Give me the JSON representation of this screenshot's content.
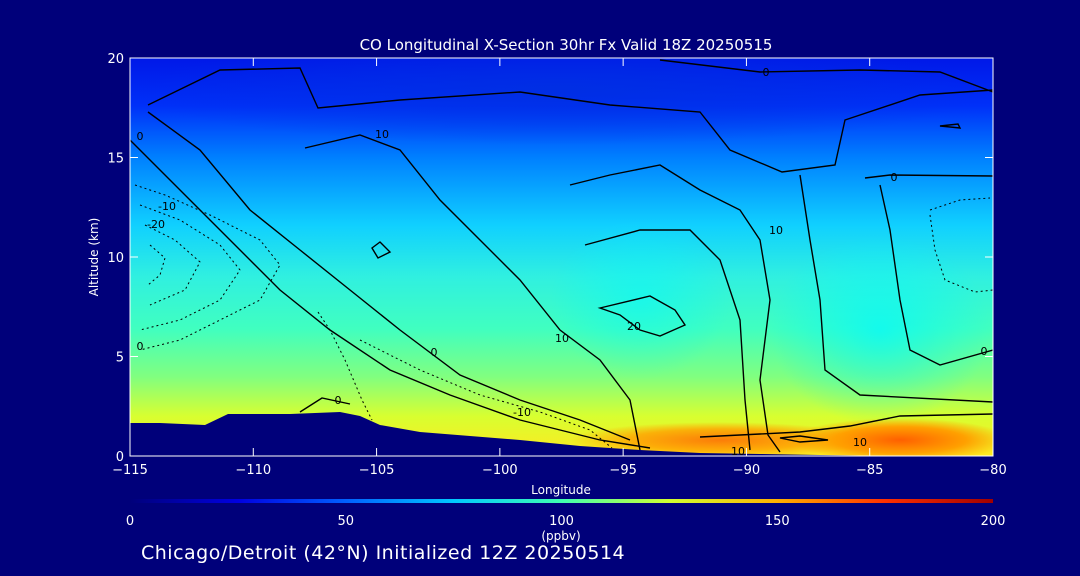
{
  "chart_data": {
    "type": "heatmap",
    "title": "CO Longitudinal X-Section 30hr  Fx Valid 18Z 20250515",
    "xlabel": "Longitude",
    "ylabel": "Altitude (km)",
    "xlim": [
      -115,
      -80
    ],
    "ylim": [
      0,
      20
    ],
    "x_ticks": [
      -115,
      -110,
      -105,
      -100,
      -95,
      -90,
      -85,
      -80
    ],
    "x_tick_labels": [
      "−115",
      "−110",
      "−105",
      "−100",
      "−95",
      "−90",
      "−85",
      "−80"
    ],
    "y_ticks": [
      0,
      5,
      10,
      15,
      20
    ],
    "y_tick_labels": [
      "0",
      "5",
      "10",
      "15",
      "20"
    ],
    "colorbar": {
      "min": 0,
      "max": 200,
      "ticks": [
        0,
        50,
        100,
        150,
        200
      ],
      "tick_labels": [
        "0",
        "50",
        "100",
        "150",
        "200"
      ],
      "unit_label": "(ppbv)",
      "colors": [
        "#00007a",
        "#0000e0",
        "#0060ff",
        "#00c8ff",
        "#40ffb0",
        "#d0ff30",
        "#ffb000",
        "#ff3000",
        "#a00000"
      ]
    },
    "co_field_ppbv": {
      "longitude": [
        -115,
        -110,
        -105,
        -100,
        -95,
        -90,
        -85,
        -80
      ],
      "altitude_km": [
        0,
        2.5,
        5,
        7.5,
        10,
        12.5,
        15,
        17.5,
        20
      ],
      "values": [
        [
          85,
          110,
          125,
          130,
          140,
          150,
          155,
          150
        ],
        [
          95,
          115,
          125,
          118,
          108,
          112,
          115,
          120
        ],
        [
          98,
          100,
          100,
          100,
          100,
          98,
          98,
          100
        ],
        [
          90,
          92,
          92,
          94,
          95,
          92,
          92,
          95
        ],
        [
          80,
          82,
          82,
          85,
          88,
          85,
          85,
          88
        ],
        [
          62,
          62,
          66,
          70,
          74,
          70,
          70,
          72
        ],
        [
          42,
          48,
          52,
          55,
          60,
          55,
          55,
          55
        ],
        [
          30,
          35,
          38,
          40,
          42,
          40,
          40,
          42
        ],
        [
          25,
          25,
          25,
          28,
          30,
          28,
          28,
          30
        ]
      ]
    },
    "contour_labels": [
      "0",
      "10",
      "0",
      "-10",
      "-20",
      "0",
      "10",
      "20",
      "0",
      "-10",
      "0",
      "10",
      "10",
      "0",
      "10",
      "0"
    ],
    "colors": {
      "background": "#00007a",
      "terrain": "#00007a",
      "contour": "#000000",
      "text": "#ffffff"
    }
  },
  "footer_text": "Chicago/Detroit (42°N) Initialized 12Z 20250514"
}
